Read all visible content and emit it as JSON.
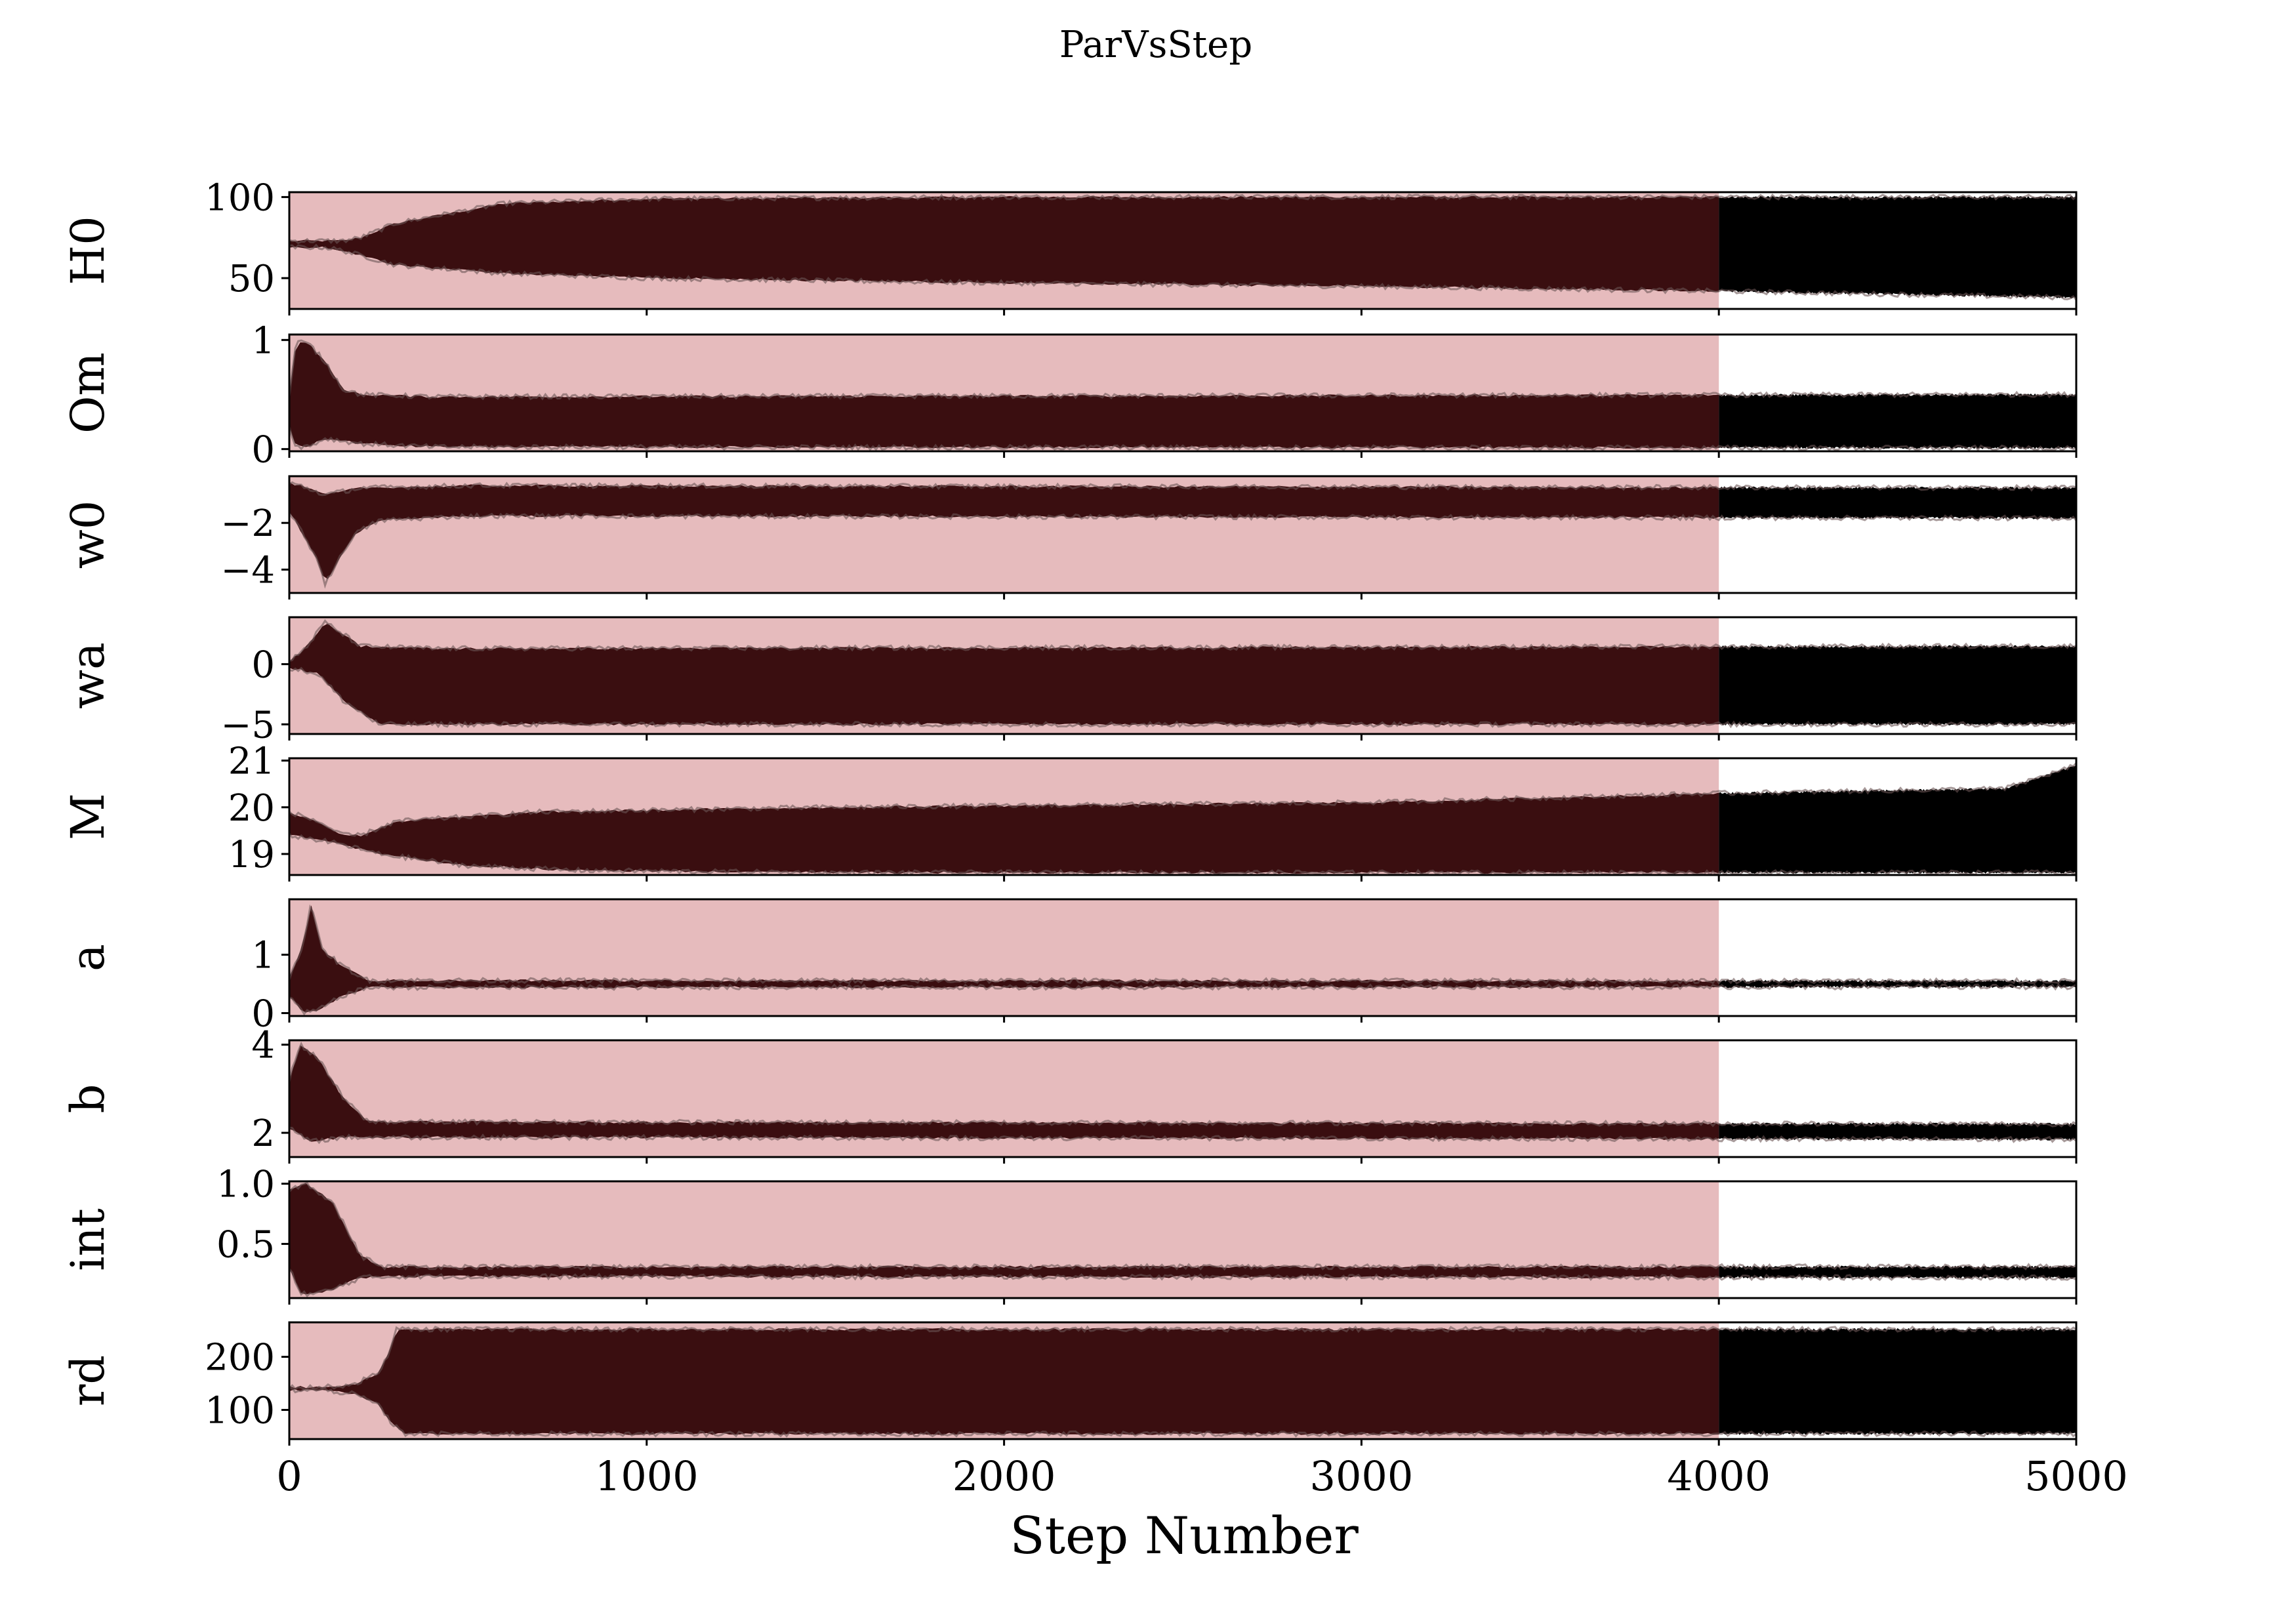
{
  "figure": {
    "title": "ParVsStep",
    "xlabel": "Step Number"
  },
  "chart_data": {
    "type": "line",
    "title": "ParVsStep",
    "xlabel": "Step Number",
    "xlim": [
      0,
      5000
    ],
    "x_ticks": [
      0,
      1000,
      2000,
      3000,
      4000,
      5000
    ],
    "x_tick_labels": [
      "0",
      "1000",
      "2000",
      "3000",
      "4000",
      "5000"
    ],
    "burn_in": {
      "from": 0,
      "to": 4000,
      "color": "#e6bbbd"
    },
    "trace_color_burn": "#3a0e10",
    "trace_color_post": "#000000",
    "grid": false,
    "panels": [
      {
        "ylabel": "H0",
        "ylim": [
          31,
          103
        ],
        "yticks": [
          50,
          100
        ],
        "ytick_labels": [
          "50",
          "100"
        ],
        "center": [
          [
            0,
            71
          ],
          [
            100,
            71
          ],
          [
            150,
            70
          ],
          [
            200,
            70
          ],
          [
            300,
            70
          ],
          [
            1000,
            74
          ],
          [
            2000,
            74
          ],
          [
            4000,
            72
          ],
          [
            5000,
            71
          ]
        ],
        "upper": [
          [
            0,
            73
          ],
          [
            100,
            73
          ],
          [
            150,
            73
          ],
          [
            200,
            75
          ],
          [
            300,
            84
          ],
          [
            600,
            96
          ],
          [
            1000,
            99
          ],
          [
            2000,
            100
          ],
          [
            4000,
            100
          ],
          [
            5000,
            100
          ]
        ],
        "lower": [
          [
            0,
            69
          ],
          [
            100,
            69
          ],
          [
            150,
            67
          ],
          [
            200,
            64
          ],
          [
            300,
            58
          ],
          [
            600,
            53
          ],
          [
            1000,
            50
          ],
          [
            2000,
            47
          ],
          [
            3000,
            45
          ],
          [
            4000,
            42
          ],
          [
            4500,
            40
          ],
          [
            5000,
            38
          ]
        ]
      },
      {
        "ylabel": "Om",
        "ylim": [
          -0.02,
          1.05
        ],
        "yticks": [
          0,
          1
        ],
        "ytick_labels": [
          "0",
          "1"
        ],
        "center": [
          [
            0,
            0.4
          ],
          [
            100,
            0.45
          ],
          [
            200,
            0.3
          ],
          [
            400,
            0.27
          ],
          [
            5000,
            0.27
          ]
        ],
        "upper": [
          [
            0,
            0.5
          ],
          [
            20,
            1.0
          ],
          [
            60,
            0.95
          ],
          [
            100,
            0.8
          ],
          [
            150,
            0.55
          ],
          [
            200,
            0.5
          ],
          [
            400,
            0.48
          ],
          [
            5000,
            0.5
          ]
        ],
        "lower": [
          [
            0,
            0.2
          ],
          [
            20,
            0.02
          ],
          [
            60,
            0.03
          ],
          [
            100,
            0.1
          ],
          [
            200,
            0.05
          ],
          [
            400,
            0.02
          ],
          [
            5000,
            0.01
          ]
        ]
      },
      {
        "ylabel": "w0",
        "ylim": [
          -5.0,
          0.0
        ],
        "yticks": [
          -4,
          -2
        ],
        "ytick_labels": [
          "−4",
          "−2"
        ],
        "center": [
          [
            0,
            -0.8
          ],
          [
            50,
            -1.0
          ],
          [
            100,
            -2.0
          ],
          [
            150,
            -1.5
          ],
          [
            250,
            -1.0
          ],
          [
            5000,
            -1.0
          ]
        ],
        "upper": [
          [
            0,
            -0.3
          ],
          [
            30,
            -0.4
          ],
          [
            100,
            -0.8
          ],
          [
            200,
            -0.5
          ],
          [
            500,
            -0.4
          ],
          [
            5000,
            -0.5
          ]
        ],
        "lower": [
          [
            0,
            -1.5
          ],
          [
            50,
            -2.8
          ],
          [
            80,
            -3.6
          ],
          [
            100,
            -4.6
          ],
          [
            130,
            -3.8
          ],
          [
            180,
            -2.5
          ],
          [
            250,
            -1.9
          ],
          [
            500,
            -1.7
          ],
          [
            5000,
            -1.8
          ]
        ]
      },
      {
        "ylabel": "wa",
        "ylim": [
          -5.8,
          3.9
        ],
        "yticks": [
          -5,
          0
        ],
        "ytick_labels": [
          "−5",
          "0"
        ],
        "center": [
          [
            0,
            0
          ],
          [
            100,
            -0.3
          ],
          [
            200,
            -1.5
          ],
          [
            400,
            -2.0
          ],
          [
            5000,
            -2.0
          ]
        ],
        "upper": [
          [
            0,
            0.2
          ],
          [
            50,
            1.5
          ],
          [
            100,
            3.5
          ],
          [
            150,
            2.5
          ],
          [
            200,
            1.5
          ],
          [
            400,
            1.3
          ],
          [
            5000,
            1.5
          ]
        ],
        "lower": [
          [
            0,
            -0.3
          ],
          [
            80,
            -0.8
          ],
          [
            150,
            -3.0
          ],
          [
            250,
            -5.0
          ],
          [
            5000,
            -5.0
          ]
        ]
      },
      {
        "ylabel": "M",
        "ylim": [
          18.55,
          21.05
        ],
        "yticks": [
          19,
          20,
          21
        ],
        "ytick_labels": [
          "19",
          "20",
          "21"
        ],
        "center": [
          [
            0,
            19.6
          ],
          [
            80,
            19.4
          ],
          [
            150,
            19.3
          ],
          [
            250,
            19.25
          ],
          [
            1000,
            19.3
          ],
          [
            3000,
            19.4
          ],
          [
            5000,
            19.3
          ]
        ],
        "upper": [
          [
            0,
            19.9
          ],
          [
            80,
            19.7
          ],
          [
            150,
            19.4
          ],
          [
            200,
            19.4
          ],
          [
            300,
            19.7
          ],
          [
            700,
            19.9
          ],
          [
            1500,
            20.0
          ],
          [
            3000,
            20.1
          ],
          [
            4000,
            20.3
          ],
          [
            4800,
            20.4
          ],
          [
            5000,
            20.9
          ]
        ],
        "lower": [
          [
            0,
            19.4
          ],
          [
            80,
            19.3
          ],
          [
            150,
            19.2
          ],
          [
            250,
            19.0
          ],
          [
            500,
            18.75
          ],
          [
            800,
            18.65
          ],
          [
            1500,
            18.6
          ],
          [
            5000,
            18.6
          ]
        ]
      },
      {
        "ylabel": "a",
        "ylim": [
          -0.05,
          1.95
        ],
        "yticks": [
          0,
          1
        ],
        "ytick_labels": [
          "0",
          "1"
        ],
        "center": [
          [
            0,
            0.5
          ],
          [
            5000,
            0.5
          ]
        ],
        "upper": [
          [
            0,
            0.6
          ],
          [
            40,
            1.2
          ],
          [
            60,
            1.9
          ],
          [
            90,
            1.1
          ],
          [
            150,
            0.8
          ],
          [
            220,
            0.56
          ],
          [
            5000,
            0.55
          ]
        ],
        "lower": [
          [
            0,
            0.3
          ],
          [
            40,
            0.0
          ],
          [
            80,
            0.05
          ],
          [
            150,
            0.3
          ],
          [
            220,
            0.44
          ],
          [
            5000,
            0.45
          ]
        ]
      },
      {
        "ylabel": "b",
        "ylim": [
          1.45,
          4.1
        ],
        "yticks": [
          2,
          4
        ],
        "ytick_labels": [
          "2",
          "4"
        ],
        "center": [
          [
            0,
            2.8
          ],
          [
            100,
            2.6
          ],
          [
            200,
            2.1
          ],
          [
            5000,
            2.05
          ]
        ],
        "upper": [
          [
            0,
            3.2
          ],
          [
            30,
            4.0
          ],
          [
            80,
            3.7
          ],
          [
            150,
            2.8
          ],
          [
            220,
            2.25
          ],
          [
            5000,
            2.2
          ]
        ],
        "lower": [
          [
            0,
            2.1
          ],
          [
            60,
            1.8
          ],
          [
            150,
            1.9
          ],
          [
            220,
            1.9
          ],
          [
            5000,
            1.85
          ]
        ]
      },
      {
        "ylabel": "int",
        "ylim": [
          0.05,
          1.02
        ],
        "yticks": [
          0.5,
          1.0
        ],
        "ytick_labels": [
          "0.5",
          "1.0"
        ],
        "center": [
          [
            0,
            0.7
          ],
          [
            100,
            0.6
          ],
          [
            200,
            0.3
          ],
          [
            300,
            0.27
          ],
          [
            5000,
            0.27
          ]
        ],
        "upper": [
          [
            0,
            0.95
          ],
          [
            50,
            1.0
          ],
          [
            120,
            0.85
          ],
          [
            200,
            0.4
          ],
          [
            260,
            0.31
          ],
          [
            5000,
            0.31
          ]
        ],
        "lower": [
          [
            0,
            0.3
          ],
          [
            30,
            0.1
          ],
          [
            60,
            0.08
          ],
          [
            120,
            0.12
          ],
          [
            200,
            0.22
          ],
          [
            300,
            0.23
          ],
          [
            5000,
            0.22
          ]
        ]
      },
      {
        "ylabel": "rd",
        "ylim": [
          45,
          265
        ],
        "yticks": [
          100,
          200
        ],
        "ytick_labels": [
          "100",
          "200"
        ],
        "center": [
          [
            0,
            140
          ],
          [
            100,
            140
          ],
          [
            200,
            140
          ],
          [
            280,
            145
          ],
          [
            350,
            150
          ],
          [
            5000,
            150
          ]
        ],
        "upper": [
          [
            0,
            143
          ],
          [
            100,
            143
          ],
          [
            180,
            148
          ],
          [
            250,
            170
          ],
          [
            280,
            210
          ],
          [
            300,
            252
          ],
          [
            5000,
            252
          ]
        ],
        "lower": [
          [
            0,
            137
          ],
          [
            100,
            137
          ],
          [
            180,
            130
          ],
          [
            250,
            110
          ],
          [
            280,
            80
          ],
          [
            320,
            55
          ],
          [
            5000,
            55
          ]
        ]
      }
    ]
  }
}
